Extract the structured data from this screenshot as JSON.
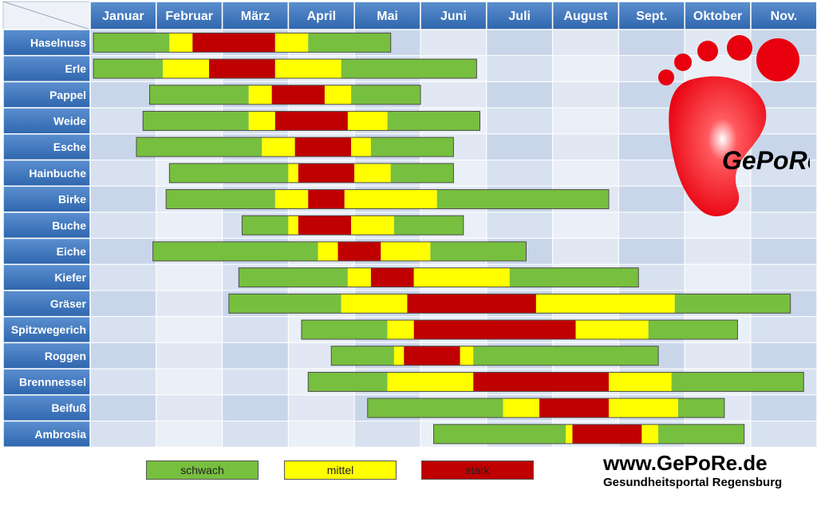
{
  "chart_data": {
    "type": "bar",
    "title": "",
    "months": [
      "Januar",
      "Februar",
      "März",
      "April",
      "Mai",
      "Juni",
      "Juli",
      "August",
      "Sept.",
      "Oktober",
      "Nov."
    ],
    "levels": {
      "schwach": {
        "label": "schwach",
        "color": "#77bf3f"
      },
      "mittel": {
        "label": "mittel",
        "color": "#ffff00"
      },
      "stark": {
        "label": "stark",
        "color": "#c00000"
      }
    },
    "rows": [
      {
        "name": "Haselnuss",
        "segments": [
          [
            0.05,
            1.2,
            "schwach"
          ],
          [
            1.2,
            1.55,
            "mittel"
          ],
          [
            1.55,
            2.8,
            "stark"
          ],
          [
            2.8,
            3.3,
            "mittel"
          ],
          [
            3.3,
            4.55,
            "schwach"
          ]
        ]
      },
      {
        "name": "Erle",
        "segments": [
          [
            0.05,
            1.1,
            "schwach"
          ],
          [
            1.1,
            1.8,
            "mittel"
          ],
          [
            1.8,
            2.8,
            "stark"
          ],
          [
            2.8,
            3.8,
            "mittel"
          ],
          [
            3.8,
            5.85,
            "schwach"
          ]
        ]
      },
      {
        "name": "Pappel",
        "segments": [
          [
            0.9,
            2.4,
            "schwach"
          ],
          [
            2.4,
            2.75,
            "mittel"
          ],
          [
            2.75,
            3.55,
            "stark"
          ],
          [
            3.55,
            3.95,
            "mittel"
          ],
          [
            3.95,
            5.0,
            "schwach"
          ]
        ]
      },
      {
        "name": "Weide",
        "segments": [
          [
            0.8,
            2.4,
            "schwach"
          ],
          [
            2.4,
            2.8,
            "mittel"
          ],
          [
            2.8,
            3.9,
            "stark"
          ],
          [
            3.9,
            4.5,
            "mittel"
          ],
          [
            4.5,
            5.9,
            "schwach"
          ]
        ]
      },
      {
        "name": "Esche",
        "segments": [
          [
            0.7,
            2.6,
            "schwach"
          ],
          [
            2.6,
            3.1,
            "mittel"
          ],
          [
            3.1,
            3.95,
            "stark"
          ],
          [
            3.95,
            4.25,
            "mittel"
          ],
          [
            4.25,
            5.5,
            "schwach"
          ]
        ]
      },
      {
        "name": "Hainbuche",
        "segments": [
          [
            1.2,
            3.0,
            "schwach"
          ],
          [
            3.0,
            3.15,
            "mittel"
          ],
          [
            3.15,
            4.0,
            "stark"
          ],
          [
            4.0,
            4.55,
            "mittel"
          ],
          [
            4.55,
            5.5,
            "schwach"
          ]
        ]
      },
      {
        "name": "Birke",
        "segments": [
          [
            1.15,
            2.8,
            "schwach"
          ],
          [
            2.8,
            3.3,
            "mittel"
          ],
          [
            3.3,
            3.85,
            "stark"
          ],
          [
            3.85,
            5.25,
            "mittel"
          ],
          [
            5.25,
            7.85,
            "schwach"
          ]
        ]
      },
      {
        "name": "Buche",
        "segments": [
          [
            2.3,
            3.0,
            "schwach"
          ],
          [
            3.0,
            3.15,
            "mittel"
          ],
          [
            3.15,
            3.95,
            "stark"
          ],
          [
            3.95,
            4.6,
            "mittel"
          ],
          [
            4.6,
            5.65,
            "schwach"
          ]
        ]
      },
      {
        "name": "Eiche",
        "segments": [
          [
            0.95,
            3.45,
            "schwach"
          ],
          [
            3.45,
            3.75,
            "mittel"
          ],
          [
            3.75,
            4.4,
            "stark"
          ],
          [
            4.4,
            5.15,
            "mittel"
          ],
          [
            5.15,
            6.6,
            "schwach"
          ]
        ]
      },
      {
        "name": "Kiefer",
        "segments": [
          [
            2.25,
            3.9,
            "schwach"
          ],
          [
            3.9,
            4.25,
            "mittel"
          ],
          [
            4.25,
            4.9,
            "stark"
          ],
          [
            4.9,
            6.35,
            "mittel"
          ],
          [
            6.35,
            8.3,
            "schwach"
          ]
        ]
      },
      {
        "name": "Gräser",
        "segments": [
          [
            2.1,
            3.8,
            "schwach"
          ],
          [
            3.8,
            4.8,
            "mittel"
          ],
          [
            4.8,
            6.75,
            "stark"
          ],
          [
            6.75,
            8.85,
            "mittel"
          ],
          [
            8.85,
            10.6,
            "schwach"
          ]
        ]
      },
      {
        "name": "Spitzwegerich",
        "segments": [
          [
            3.2,
            4.5,
            "schwach"
          ],
          [
            4.5,
            4.9,
            "mittel"
          ],
          [
            4.9,
            7.35,
            "stark"
          ],
          [
            7.35,
            8.45,
            "mittel"
          ],
          [
            8.45,
            9.8,
            "schwach"
          ]
        ]
      },
      {
        "name": "Roggen",
        "segments": [
          [
            3.65,
            4.6,
            "schwach"
          ],
          [
            4.6,
            4.75,
            "mittel"
          ],
          [
            4.75,
            5.6,
            "stark"
          ],
          [
            5.6,
            5.8,
            "mittel"
          ],
          [
            5.8,
            8.6,
            "schwach"
          ]
        ]
      },
      {
        "name": "Brennnessel",
        "segments": [
          [
            3.3,
            4.5,
            "schwach"
          ],
          [
            4.5,
            5.8,
            "mittel"
          ],
          [
            5.8,
            7.85,
            "stark"
          ],
          [
            7.85,
            8.8,
            "mittel"
          ],
          [
            8.8,
            10.8,
            "schwach"
          ]
        ]
      },
      {
        "name": "Beifuß",
        "segments": [
          [
            4.2,
            6.25,
            "schwach"
          ],
          [
            6.25,
            6.8,
            "mittel"
          ],
          [
            6.8,
            7.85,
            "stark"
          ],
          [
            7.85,
            8.9,
            "mittel"
          ],
          [
            8.9,
            9.6,
            "schwach"
          ]
        ]
      },
      {
        "name": "Ambrosia",
        "segments": [
          [
            5.2,
            7.2,
            "schwach"
          ],
          [
            7.2,
            7.3,
            "mittel"
          ],
          [
            7.3,
            8.35,
            "stark"
          ],
          [
            8.35,
            8.6,
            "mittel"
          ],
          [
            8.6,
            9.9,
            "schwach"
          ]
        ]
      }
    ]
  },
  "legend": {
    "schwach": "schwach",
    "mittel": "mittel",
    "stark": "stark"
  },
  "logo": {
    "text": "GePoRe",
    "colors": {
      "foot": "#e8000e"
    }
  },
  "footer": {
    "url": "www.GePoRe.de",
    "subtitle": "Gesundheitsportal Regensburg"
  }
}
